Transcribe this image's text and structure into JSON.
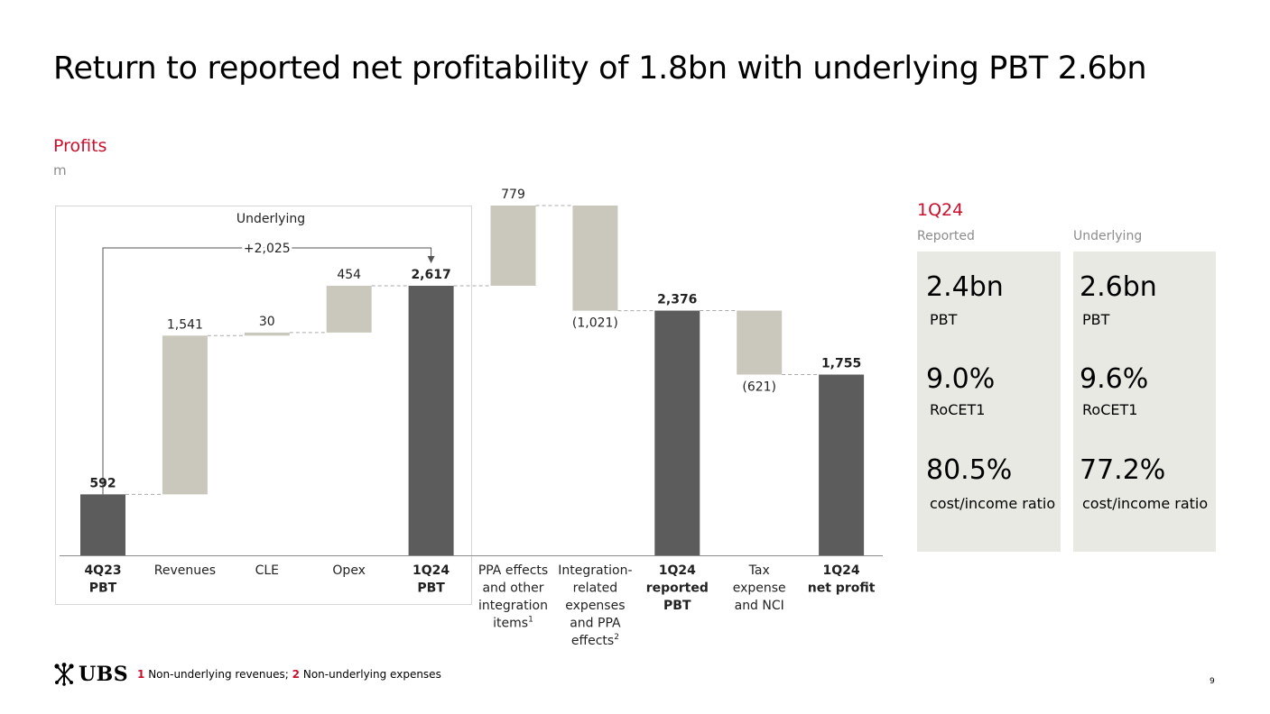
{
  "title": "Return to reported net profitability of 1.8bn with underlying PBT 2.6bn",
  "section": {
    "title": "Profits",
    "unit": "m"
  },
  "colors": {
    "accent": "#c8102e",
    "dark_bar": "#5b5c5b",
    "light_bar": "#cac8bc",
    "kpi_bg": "#e9e9e4"
  },
  "chart_data": {
    "type": "bar",
    "subtype": "waterfall",
    "underlying_box_label": "Underlying",
    "bracket_label": "+2,025",
    "categories": [
      {
        "lines": [
          "4Q23",
          "PBT"
        ],
        "bold": true
      },
      {
        "lines": [
          "Revenues"
        ],
        "bold": false
      },
      {
        "lines": [
          "CLE"
        ],
        "bold": false
      },
      {
        "lines": [
          "Opex"
        ],
        "bold": false
      },
      {
        "lines": [
          "1Q24",
          "PBT"
        ],
        "bold": true
      },
      {
        "lines": [
          "PPA effects",
          "and other",
          "integration",
          "items"
        ],
        "sup": "1",
        "bold": false
      },
      {
        "lines": [
          "Integration-",
          "related",
          "expenses",
          "and PPA",
          "effects"
        ],
        "sup": "2",
        "bold": false
      },
      {
        "lines": [
          "1Q24",
          "reported",
          "PBT"
        ],
        "bold": true
      },
      {
        "lines": [
          "Tax",
          "expense",
          "and NCI"
        ],
        "bold": false
      },
      {
        "lines": [
          "1Q24",
          "net profit"
        ],
        "bold": true
      }
    ],
    "bars": [
      {
        "kind": "total",
        "start": 0,
        "end": 592,
        "label": "592",
        "label_pos": "top"
      },
      {
        "kind": "delta",
        "start": 592,
        "end": 2133,
        "label": "1,541",
        "label_pos": "top"
      },
      {
        "kind": "delta",
        "start": 2133,
        "end": 2163,
        "label": "30",
        "label_pos": "top"
      },
      {
        "kind": "delta",
        "start": 2163,
        "end": 2617,
        "label": "454",
        "label_pos": "top"
      },
      {
        "kind": "total",
        "start": 0,
        "end": 2617,
        "label": "2,617",
        "label_pos": "top"
      },
      {
        "kind": "delta",
        "start": 2617,
        "end": 3396,
        "label": "779",
        "label_pos": "top"
      },
      {
        "kind": "delta",
        "start": 3396,
        "end": 2375,
        "label": "(1,021)",
        "label_pos": "bottom"
      },
      {
        "kind": "total",
        "start": 0,
        "end": 2376,
        "label": "2,376",
        "label_pos": "top"
      },
      {
        "kind": "delta",
        "start": 2376,
        "end": 1755,
        "label": "(621)",
        "label_pos": "bottom"
      },
      {
        "kind": "total",
        "start": 0,
        "end": 1755,
        "label": "1,755",
        "label_pos": "top"
      }
    ],
    "ylim": [
      0,
      3396
    ]
  },
  "kpi": {
    "heading": "1Q24",
    "columns": [
      {
        "header": "Reported",
        "items": [
          {
            "value": "2.4bn",
            "label": "PBT"
          },
          {
            "value": "9.0%",
            "label": "RoCET1"
          },
          {
            "value": "80.5%",
            "label": "cost/income ratio"
          }
        ]
      },
      {
        "header": "Underlying",
        "items": [
          {
            "value": "2.6bn",
            "label": "PBT"
          },
          {
            "value": "9.6%",
            "label": "RoCET1"
          },
          {
            "value": "77.2%",
            "label": "cost/income ratio"
          }
        ]
      }
    ]
  },
  "footer": {
    "brand": "UBS",
    "notes": [
      {
        "n": "1",
        "text": "Non-underlying revenues;"
      },
      {
        "n": "2",
        "text": "Non-underlying expenses"
      }
    ],
    "page": "9"
  }
}
